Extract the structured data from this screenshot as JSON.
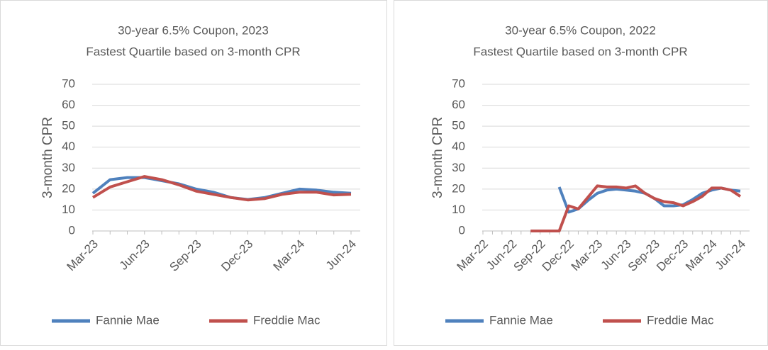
{
  "chart_data": [
    {
      "type": "line",
      "title": "30-year 6.5% Coupon, 2023",
      "subtitle": "Fastest Quartile based on 3-month CPR",
      "y_label": "3-month CPR",
      "categories": [
        "Mar-23",
        null,
        null,
        "Jun-23",
        null,
        null,
        "Sep-23",
        null,
        null,
        "Dec-23",
        null,
        null,
        "Mar-24",
        null,
        null,
        "Jun-24"
      ],
      "series": [
        {
          "name": "Fannie Mae",
          "color": "#4f81bd",
          "values": [
            18,
            24.5,
            25.5,
            25.5,
            24,
            22.5,
            20,
            18.5,
            16,
            15,
            16,
            18,
            20,
            19.5,
            18.5,
            18
          ]
        },
        {
          "name": "Freddie Mac",
          "color": "#c0504d",
          "values": [
            16,
            21,
            23.5,
            26,
            24.5,
            22,
            19,
            17.5,
            16,
            14.8,
            15.5,
            17.5,
            18.5,
            18.5,
            17.2,
            17.5
          ]
        }
      ],
      "ylim": [
        0,
        70
      ],
      "yticks": [
        0,
        10,
        20,
        30,
        40,
        50,
        60,
        70
      ],
      "grid": true,
      "legend": "bottom"
    },
    {
      "type": "line",
      "title": "30-year 6.5% Coupon, 2022",
      "subtitle": "Fastest Quartile based on 3-month CPR",
      "y_label": "3-month CPR",
      "categories": [
        "Mar-22",
        null,
        null,
        "Jun-22",
        null,
        null,
        "Sep-22",
        null,
        null,
        "Dec-22",
        null,
        null,
        "Mar-23",
        null,
        null,
        "Jun-23",
        null,
        null,
        "Sep-23",
        null,
        null,
        "Dec-23",
        null,
        null,
        "Mar-24",
        null,
        null,
        "Jun-24"
      ],
      "series": [
        {
          "name": "Fannie Mae",
          "color": "#4f81bd",
          "values": [
            null,
            null,
            null,
            null,
            null,
            null,
            null,
            null,
            21,
            9,
            10.5,
            14.5,
            18,
            19.5,
            20,
            19.5,
            19,
            18,
            15.5,
            12,
            12,
            12.5,
            15,
            18,
            19.5,
            20.5,
            19.5,
            19
          ]
        },
        {
          "name": "Freddie Mac",
          "color": "#c0504d",
          "values": [
            null,
            null,
            null,
            null,
            null,
            0,
            0,
            0,
            0,
            12,
            10.5,
            16,
            21.5,
            21,
            21,
            20.5,
            21.5,
            18,
            15.5,
            14,
            13.5,
            12,
            14,
            16.5,
            20.5,
            20.5,
            19.5,
            16.5
          ]
        }
      ],
      "ylim": [
        0,
        70
      ],
      "yticks": [
        0,
        10,
        20,
        30,
        40,
        50,
        60,
        70
      ],
      "grid": true,
      "legend": "bottom"
    }
  ]
}
